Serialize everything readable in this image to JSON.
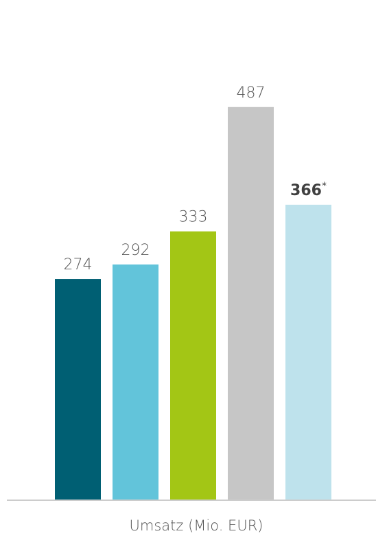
{
  "chart_data": {
    "type": "bar",
    "xlabel": "Umsatz (Mio. EUR)",
    "ylim": [
      0,
      560
    ],
    "grid": false,
    "legend": "none",
    "bars": [
      {
        "value": 274,
        "label": "274",
        "suffix": "",
        "bold": false,
        "color": "#005f73"
      },
      {
        "value": 292,
        "label": "292",
        "suffix": "",
        "bold": false,
        "color": "#62c4da"
      },
      {
        "value": 333,
        "label": "333",
        "suffix": "",
        "bold": false,
        "color": "#a3c615"
      },
      {
        "value": 487,
        "label": "487",
        "suffix": "",
        "bold": false,
        "color": "#c6c6c6"
      },
      {
        "value": 366,
        "label": "366",
        "suffix": "*",
        "bold": true,
        "color": "#bee2ec"
      }
    ],
    "axis_color": "#cccccc"
  }
}
